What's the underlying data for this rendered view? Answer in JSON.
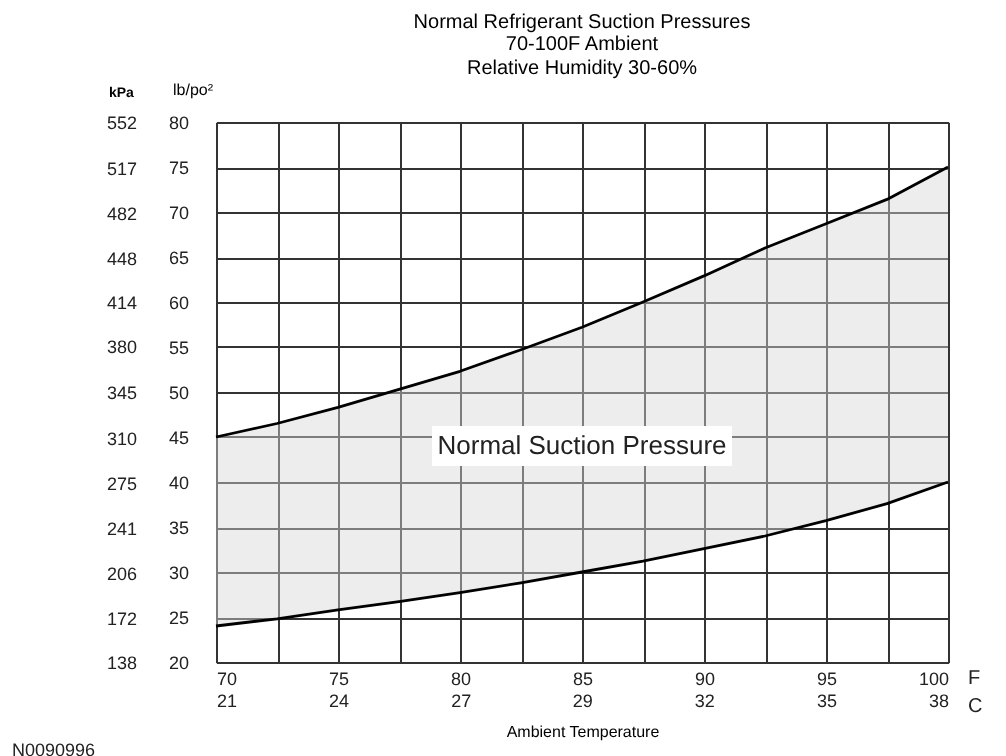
{
  "chart_data": {
    "type": "line",
    "title": "Normal Refrigerant Suction Pressures",
    "subtitle": "70-100F Ambient\nRelative Humidity 30-60%",
    "xlabel": "Ambient Temperature",
    "ylabel": "lb/po²",
    "y2label": "kPa",
    "x": [
      70,
      72.5,
      75,
      77.5,
      80,
      82.5,
      85,
      87.5,
      90,
      92.5,
      95,
      97.5,
      100
    ],
    "series": [
      {
        "color": "#000000",
        "values": [
          45,
          46.5,
          48.3,
          50.3,
          52.3,
          54.7,
          57.2,
          60,
          62.9,
          66,
          68.7,
          71.4,
          75
        ],
        "lower": [
          24,
          24.8,
          25.8,
          26.7,
          27.7,
          28.8,
          30,
          31.2,
          32.6,
          34,
          35.7,
          37.6,
          40
        ],
        "upper": [
          45,
          46.5,
          48.3,
          50.3,
          52.3,
          54.7,
          57.2,
          60,
          62.9,
          66,
          68.7,
          71.4,
          75
        ]
      },
      {
        "color": "#000000",
        "values": [
          24,
          24.8,
          25.8,
          26.7,
          27.7,
          28.8,
          30,
          31.2,
          32.6,
          34,
          35.7,
          37.6,
          40
        ]
      }
    ],
    "xlim": [
      70,
      100
    ],
    "xticks": [
      70,
      {
        "value": 72.5,
        "label": null
      },
      75,
      {
        "value": 77.5,
        "label": null
      },
      80,
      {
        "value": 82.5,
        "label": null
      },
      85,
      {
        "value": 87.5,
        "label": null
      },
      90,
      {
        "value": 92.5,
        "label": null
      },
      95,
      {
        "value": 97.5,
        "label": null
      },
      100
    ],
    "x2lim": [
      21.11,
      37.78
    ],
    "x2ticks": [
      {
        "value": 21.11,
        "label": "21"
      },
      {
        "value": 23.89,
        "label": "24"
      },
      {
        "value": 26.67,
        "label": "27"
      },
      {
        "value": 29.44,
        "label": "29"
      },
      {
        "value": 32.22,
        "label": "32"
      },
      {
        "value": 35,
        "label": "35"
      },
      {
        "value": 37.78,
        "label": "38"
      }
    ],
    "ylim": [
      20,
      80
    ],
    "yticks": [
      20,
      25,
      30,
      35,
      40,
      45,
      50,
      55,
      60,
      65,
      70,
      75,
      80
    ],
    "y2lim": [
      138,
      552
    ],
    "y2ticks": [
      138,
      172,
      206,
      241,
      275,
      310,
      345,
      380,
      414,
      448,
      482,
      517,
      552
    ],
    "annotations": [
      "F",
      "C",
      "N0090996",
      "Normal Suction Pressure"
    ],
    "grid": true,
    "legend": false,
    "marker": "none",
    "line_style": "solid"
  }
}
